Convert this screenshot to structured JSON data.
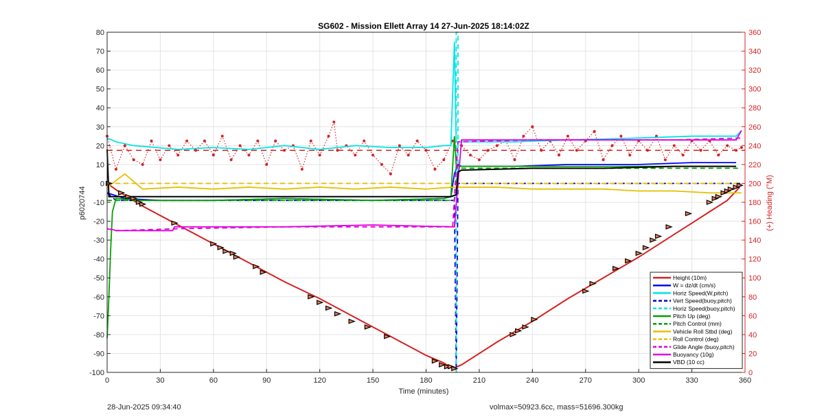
{
  "chart_data": {
    "type": "line",
    "title": "SG602 - Mission Ellett Array 14 27-Jun-2025 18:14:02Z",
    "xlabel": "Time (minutes)",
    "ylabel": "p6020744",
    "ylabel_right": "(+) Heading (°M)",
    "xlim": [
      0,
      360
    ],
    "ylim": [
      -100,
      80
    ],
    "ylim_right": [
      0,
      360
    ],
    "xticks": [
      "0",
      "30",
      "60",
      "90",
      "120",
      "150",
      "180",
      "210",
      "240",
      "270",
      "300",
      "330",
      "360"
    ],
    "yticks": [
      "80",
      "70",
      "60",
      "50",
      "40",
      "30",
      "20",
      "10",
      "0",
      "-10",
      "-20",
      "-30",
      "-40",
      "-50",
      "-60",
      "-70",
      "-80",
      "-90",
      "-100"
    ],
    "yticks_right": [
      "360",
      "340",
      "320",
      "300",
      "280",
      "260",
      "240",
      "220",
      "200",
      "180",
      "160",
      "140",
      "120",
      "100",
      "80",
      "60",
      "40",
      "20",
      "0"
    ],
    "grid": true,
    "legend_position": "bottom-right",
    "series": [
      {
        "name": "Height (10m)",
        "color": "#d62020",
        "style": "solid",
        "x": [
          0,
          6,
          20,
          40,
          60,
          80,
          100,
          120,
          140,
          160,
          180,
          190,
          195,
          200,
          220,
          240,
          260,
          280,
          300,
          320,
          340,
          350,
          357
        ],
        "y": [
          0,
          -4,
          -12,
          -22,
          -32,
          -42,
          -52,
          -61,
          -71,
          -81,
          -91,
          -95,
          -98,
          -96,
          -84,
          -73,
          -61,
          -50,
          -39,
          -27,
          -15,
          -9,
          -2
        ]
      },
      {
        "name": "W = dz/dt (cm/s)",
        "color": "#0000ff",
        "style": "solid",
        "x": [
          0,
          10,
          30,
          60,
          100,
          150,
          190,
          194,
          196,
          198,
          200,
          230,
          260,
          300,
          330,
          355
        ],
        "y": [
          -5,
          -8,
          -9,
          -9,
          -8,
          -9,
          -8,
          -7,
          5,
          10,
          9,
          9,
          10,
          10,
          11,
          11
        ]
      },
      {
        "name": "Horiz Speed(W,pitch)",
        "color": "#00e5e5",
        "style": "solid",
        "x": [
          0,
          5,
          15,
          40,
          60,
          80,
          100,
          120,
          140,
          160,
          180,
          190,
          194,
          196,
          197,
          198,
          200,
          230,
          260,
          300,
          330,
          355,
          358
        ],
        "y": [
          24,
          22,
          20,
          18,
          19,
          18,
          20,
          18,
          20,
          19,
          19,
          20,
          20,
          75,
          22,
          22,
          22,
          22,
          23,
          24,
          25,
          25,
          28
        ]
      },
      {
        "name": "Vert Speed(buoy,pitch)",
        "color": "#0000cc",
        "style": "dashed",
        "x": [
          0,
          5,
          30,
          60,
          100,
          150,
          190,
          196,
          197,
          198,
          200,
          240,
          280,
          320,
          358
        ],
        "y": [
          -5,
          -9,
          -9,
          -9,
          -9,
          -9,
          -9,
          -9,
          -100,
          0,
          0,
          0,
          0,
          0,
          0
        ]
      },
      {
        "name": "Horiz Speed(buoy,pitch)",
        "color": "#00e5e5",
        "style": "dashed",
        "x": [
          197,
          197,
          198,
          198
        ],
        "y": [
          -100,
          80,
          80,
          0
        ]
      },
      {
        "name": "Pitch Up (deg)",
        "color": "#00a000",
        "style": "solid",
        "x": [
          0,
          1,
          2,
          3,
          5,
          20,
          60,
          100,
          150,
          190,
          194,
          196,
          197,
          198,
          200,
          240,
          280,
          320,
          355
        ],
        "y": [
          -82,
          -60,
          -35,
          -15,
          -8,
          -9,
          -9,
          -8,
          -9,
          -8,
          -7,
          25,
          10,
          9,
          9,
          9,
          9,
          9,
          9
        ]
      },
      {
        "name": "Pitch Control (mm)",
        "color": "#00a000",
        "style": "dashed",
        "x": [
          0,
          30,
          60,
          100,
          150,
          196,
          197,
          198,
          240,
          280,
          320,
          358
        ],
        "y": [
          -9,
          -9,
          -9,
          -9,
          -9,
          -9,
          9,
          8,
          8,
          8,
          8,
          8
        ]
      },
      {
        "name": "Vehicle Roll Stbd (deg)",
        "color": "#e6c000",
        "style": "solid",
        "x": [
          0,
          10,
          20,
          40,
          60,
          80,
          100,
          120,
          140,
          160,
          180,
          195,
          200,
          220,
          240,
          260,
          280,
          300,
          320,
          340,
          358
        ],
        "y": [
          -2,
          5,
          -3,
          -2,
          -3,
          -2,
          -3,
          -2,
          -3,
          -2,
          -3,
          -2,
          -2,
          -2,
          -3,
          -3,
          -3,
          -4,
          -4,
          -5,
          -5
        ]
      },
      {
        "name": "Roll Control (deg)",
        "color": "#e6c000",
        "style": "dashed",
        "x": [
          0,
          20,
          60,
          100,
          150,
          195,
          198,
          240,
          280,
          320,
          358
        ],
        "y": [
          0,
          0,
          0,
          0,
          0,
          0,
          0,
          0,
          0,
          0,
          0
        ]
      },
      {
        "name": "Glide Angle (buoy,pitch)",
        "color": "#e000e0",
        "style": "dashed",
        "x": [
          0,
          5,
          40,
          100,
          150,
          195,
          198,
          240,
          280,
          320,
          358
        ],
        "y": [
          -24,
          -25,
          -24,
          -23,
          -23,
          -23,
          22,
          23,
          23,
          23,
          24
        ]
      },
      {
        "name": "Buoyancy (10g)",
        "color": "#e000e0",
        "style": "solid",
        "x": [
          2,
          5,
          20,
          37,
          38,
          60,
          100,
          150,
          196,
          200,
          240,
          280,
          320,
          355,
          358
        ],
        "y": [
          -24,
          -25,
          -25,
          -25,
          -23,
          -23,
          -23,
          -22,
          -23,
          23,
          23,
          23,
          23,
          23,
          28
        ]
      },
      {
        "name": "VBD (10 cc)",
        "color": "#000000",
        "style": "solid",
        "x": [
          0,
          1,
          5,
          30,
          60,
          100,
          150,
          194,
          197,
          198,
          200,
          240,
          280,
          320,
          355
        ],
        "y": [
          18,
          -7,
          -7,
          -7,
          -7,
          -7,
          -7,
          -7,
          -6,
          6,
          7,
          8,
          8,
          9,
          9
        ]
      }
    ],
    "heading_series": {
      "color": "#d62020",
      "marker": "dots",
      "axis": "right",
      "x": [
        0,
        5,
        10,
        15,
        20,
        25,
        30,
        35,
        40,
        45,
        50,
        55,
        60,
        65,
        70,
        75,
        80,
        85,
        90,
        95,
        100,
        105,
        110,
        115,
        120,
        125,
        128,
        130,
        135,
        140,
        145,
        150,
        155,
        160,
        165,
        170,
        175,
        180,
        185,
        190,
        195,
        200,
        205,
        210,
        215,
        220,
        225,
        230,
        235,
        240,
        245,
        250,
        255,
        260,
        265,
        270,
        275,
        280,
        285,
        290,
        295,
        300,
        305,
        310,
        315,
        320,
        325,
        330,
        335,
        340,
        345,
        350,
        355,
        358
      ],
      "y": [
        250,
        215,
        240,
        225,
        220,
        245,
        225,
        240,
        230,
        245,
        235,
        245,
        230,
        250,
        225,
        240,
        230,
        245,
        220,
        245,
        235,
        240,
        215,
        245,
        230,
        250,
        265,
        235,
        240,
        230,
        245,
        230,
        220,
        210,
        240,
        230,
        245,
        235,
        215,
        225,
        245,
        240,
        230,
        225,
        235,
        240,
        245,
        225,
        250,
        260,
        235,
        245,
        230,
        250,
        235,
        245,
        255,
        225,
        240,
        250,
        230,
        245,
        235,
        250,
        225,
        240,
        230,
        245,
        235,
        245,
        230,
        240,
        235,
        238
      ]
    },
    "heading_reference": {
      "color": "#d62020",
      "style": "dashed",
      "value": 235
    },
    "heading_markers": {
      "x": [
        1,
        8,
        12,
        15,
        18,
        20,
        38,
        60,
        64,
        67,
        71,
        73,
        84,
        88,
        115,
        120,
        125,
        130,
        138,
        147,
        158,
        185,
        189,
        192,
        194,
        196,
        229,
        232,
        236,
        241,
        270,
        274,
        287,
        294,
        300,
        304,
        308,
        311,
        317,
        328,
        340,
        343,
        345,
        348,
        350,
        352,
        355,
        357
      ],
      "y": [
        0,
        -5,
        -7,
        -8,
        -10,
        -11,
        -21,
        -32,
        -34,
        -36,
        -37,
        -39,
        -44,
        -47,
        -60,
        -63,
        -66,
        -69,
        -73,
        -76,
        -81,
        -94,
        -96,
        -97,
        -97,
        -98,
        -80,
        -78,
        -76,
        -72,
        -57,
        -53,
        -45,
        -41,
        -37,
        -34,
        -30,
        -28,
        -23,
        -16,
        -10,
        -8,
        -7,
        -5,
        -4,
        -3,
        -2,
        -1
      ]
    }
  },
  "footer": {
    "left": "28-Jun-2025 09:34:40",
    "right": "volmax=50923.6cc, mass=51696.300kg"
  }
}
